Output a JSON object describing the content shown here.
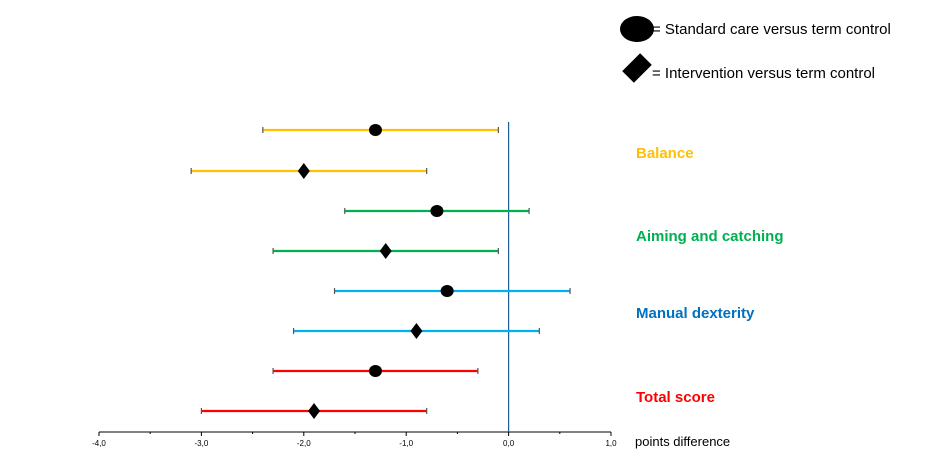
{
  "legend": {
    "circle_label": "= Standard care versus term control",
    "diamond_label": "= Intervention versus term control"
  },
  "x_unit_label": "points difference",
  "colors": {
    "balance": "#FFC000",
    "aiming": "#00B050",
    "dexterity": "#00B0F0",
    "dexterity_label": "#0070C0",
    "total": "#FF0000",
    "reference_line": "#1F5C99",
    "axis": "#000000"
  },
  "chart_data": {
    "type": "forest",
    "xlim": [
      -4.0,
      1.0
    ],
    "xticks": [
      "-4,0",
      "-3,0",
      "-2,0",
      "-1,0",
      "0,0",
      "1,0"
    ],
    "xtick_values": [
      -4,
      -3,
      -2,
      -1,
      0,
      1
    ],
    "reference_value": 0,
    "groups": [
      {
        "name": "Balance",
        "color_key": "balance",
        "rows": [
          {
            "comparison": "Standard care versus term control",
            "marker": "circle",
            "estimate": -1.3,
            "lower": -2.4,
            "upper": -0.1
          },
          {
            "comparison": "Intervention versus term control",
            "marker": "diamond",
            "estimate": -2.0,
            "lower": -3.1,
            "upper": -0.8
          }
        ]
      },
      {
        "name": "Aiming and catching",
        "color_key": "aiming",
        "rows": [
          {
            "comparison": "Standard care versus term control",
            "marker": "circle",
            "estimate": -0.7,
            "lower": -1.6,
            "upper": 0.2
          },
          {
            "comparison": "Intervention versus term control",
            "marker": "diamond",
            "estimate": -1.2,
            "lower": -2.3,
            "upper": -0.1
          }
        ]
      },
      {
        "name": "Manual dexterity",
        "color_key": "dexterity",
        "label_color_key": "dexterity_label",
        "rows": [
          {
            "comparison": "Standard care versus term control",
            "marker": "circle",
            "estimate": -0.6,
            "lower": -1.7,
            "upper": 0.6
          },
          {
            "comparison": "Intervention versus term control",
            "marker": "diamond",
            "estimate": -0.9,
            "lower": -2.1,
            "upper": 0.3
          }
        ]
      },
      {
        "name": "Total score",
        "color_key": "total",
        "rows": [
          {
            "comparison": "Standard care versus term control",
            "marker": "circle",
            "estimate": -1.3,
            "lower": -2.3,
            "upper": -0.3
          },
          {
            "comparison": "Intervention versus term control",
            "marker": "diamond",
            "estimate": -1.9,
            "lower": -3.0,
            "upper": -0.8
          }
        ]
      }
    ]
  }
}
